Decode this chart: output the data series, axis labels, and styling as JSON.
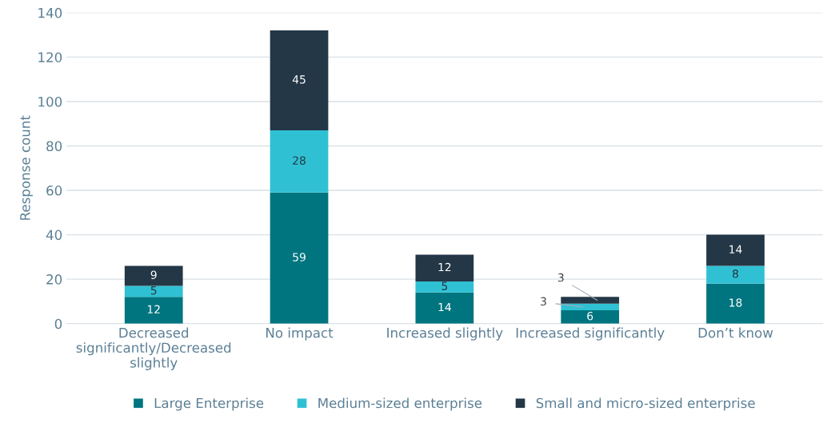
{
  "chart_data": {
    "type": "bar",
    "stacked": true,
    "ylabel": "Response count",
    "categories": [
      "Decreased significantly/Decreased slightly",
      "No impact",
      "Increased slightly",
      "Increased significantly",
      "Don’t know"
    ],
    "series": [
      {
        "name": "Large Enterprise",
        "color": "#00757f",
        "values": [
          12,
          59,
          14,
          6,
          18
        ]
      },
      {
        "name": "Medium-sized enterprise",
        "color": "#2fc1d3",
        "values": [
          5,
          28,
          5,
          3,
          8
        ]
      },
      {
        "name": "Small and micro-sized enterprise",
        "color": "#243746",
        "values": [
          9,
          45,
          12,
          3,
          14
        ]
      }
    ],
    "ylim": [
      0,
      140
    ],
    "yticks": [
      0,
      20,
      40,
      60,
      80,
      100,
      120,
      140
    ],
    "grid": "y",
    "legend": "bottom",
    "data_labels": true
  }
}
